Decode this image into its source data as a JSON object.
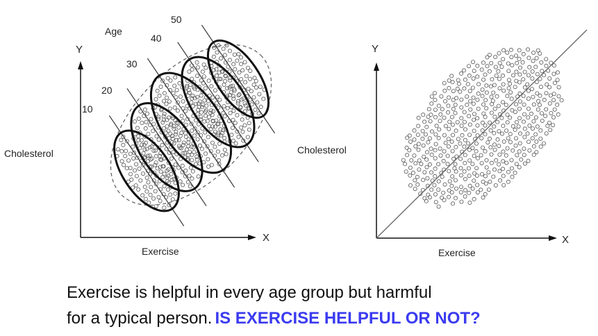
{
  "left_panel": {
    "y_axis": "Y",
    "x_axis": "X",
    "y_label": "Cholesterol",
    "x_label": "Exercise",
    "age_title": "Age",
    "age_groups": [
      "10",
      "20",
      "30",
      "40",
      "50"
    ]
  },
  "right_panel": {
    "y_axis": "Y",
    "x_axis": "X",
    "y_label": "Cholesterol",
    "x_label": "Exercise"
  },
  "caption": {
    "line1": "Exercise is helpful in every age group but harmful",
    "line2": "for a typical person.",
    "question": "IS EXERCISE HELPFUL OR NOT?"
  },
  "colors": {
    "question": "#3b3bf0",
    "ink": "#111111",
    "circles": "#555555"
  }
}
